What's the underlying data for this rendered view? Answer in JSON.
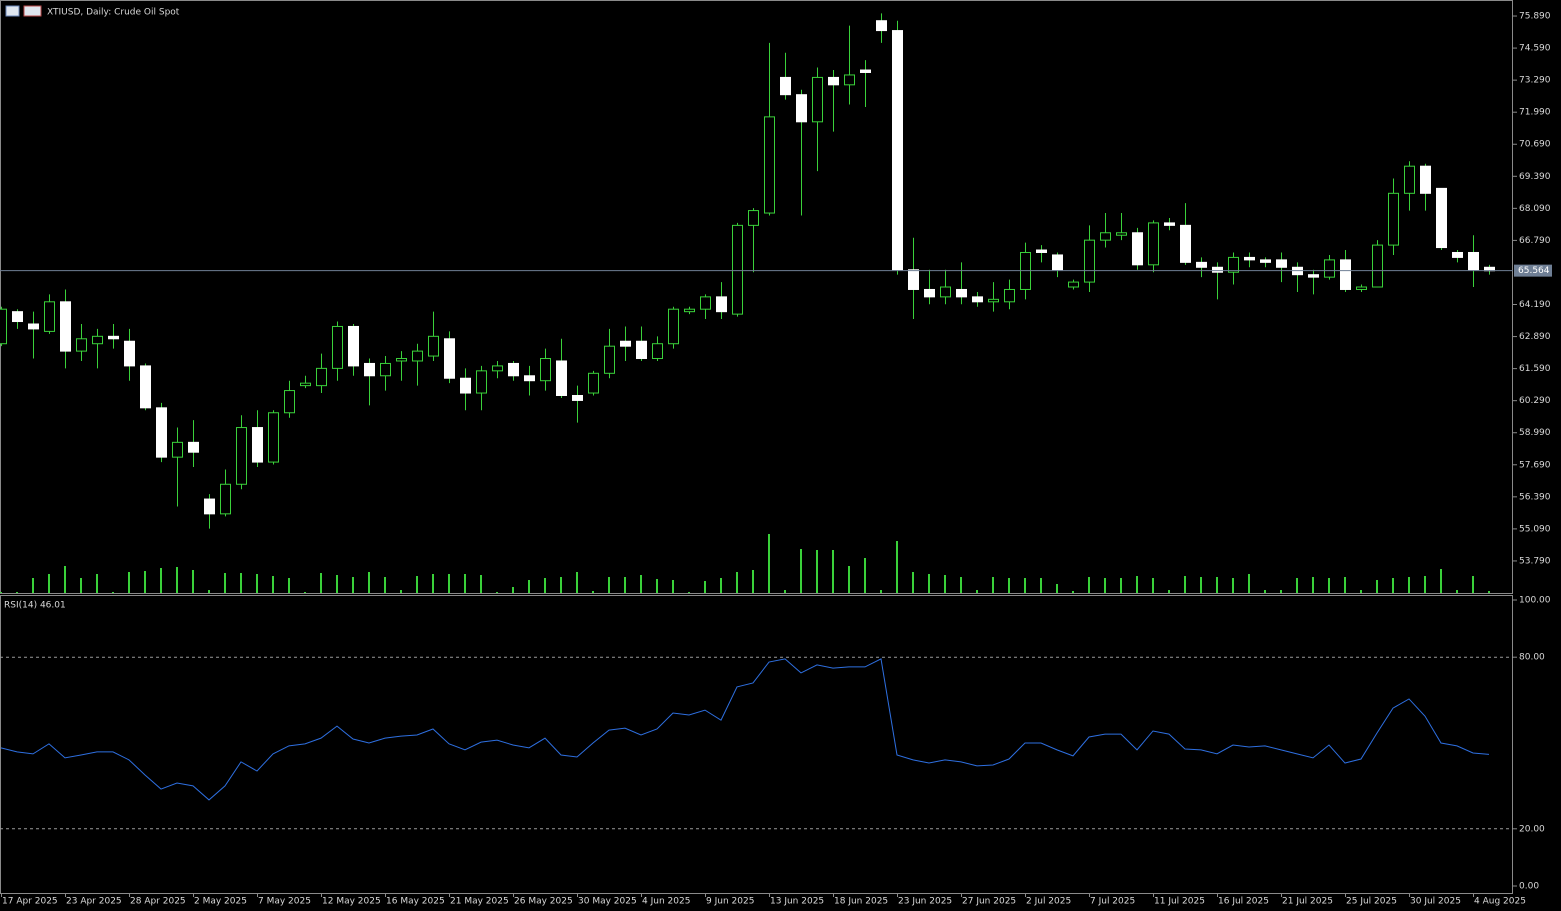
{
  "chart_data": [
    {
      "type": "candlestick",
      "title": "XTIUSD, Daily:  Crude Oil Spot",
      "categories": [
        "17 Apr 2025",
        null,
        null,
        null,
        "23 Apr 2025",
        null,
        null,
        null,
        "28 Apr 2025",
        null,
        null,
        null,
        "2 May 2025",
        null,
        null,
        null,
        "7 May 2025",
        null,
        null,
        null,
        "12 May 2025",
        null,
        null,
        null,
        "16 May 2025",
        null,
        null,
        null,
        "21 May 2025",
        null,
        null,
        null,
        "26 May 2025",
        null,
        null,
        null,
        "30 May 2025",
        null,
        null,
        null,
        "4 Jun 2025",
        null,
        null,
        null,
        "9 Jun 2025",
        null,
        null,
        null,
        "13 Jun 2025",
        null,
        null,
        null,
        "18 Jun 2025",
        null,
        null,
        null,
        "23 Jun 2025",
        null,
        null,
        null,
        "27 Jun 2025",
        null,
        null,
        null,
        "2 Jul 2025",
        null,
        null,
        null,
        "7 Jul 2025",
        null,
        null,
        null,
        "11 Jul 2025",
        null,
        null,
        null,
        "16 Jul 2025",
        null,
        null,
        null,
        "21 Jul 2025",
        null,
        null,
        null,
        "25 Jul 2025",
        null,
        null,
        null,
        "30 Jul 2025",
        null,
        null,
        null,
        "4 Aug 2025",
        null
      ],
      "open": [
        62.6,
        63.9,
        63.4,
        63.1,
        64.3,
        62.3,
        62.6,
        62.9,
        62.7,
        61.7,
        60.0,
        58.0,
        58.6,
        56.3,
        55.7,
        56.9,
        59.2,
        57.8,
        59.8,
        60.9,
        60.9,
        61.6,
        63.3,
        61.8,
        61.3,
        61.9,
        61.9,
        62.1,
        62.8,
        61.2,
        60.6,
        61.5,
        61.8,
        61.3,
        61.1,
        61.9,
        60.5,
        60.6,
        61.4,
        62.7,
        62.7,
        62.0,
        62.6,
        63.9,
        64.0,
        64.5,
        63.8,
        67.4,
        67.9,
        73.4,
        72.7,
        71.6,
        73.4,
        73.1,
        73.7,
        75.7,
        75.3,
        65.6,
        64.8,
        64.5,
        64.8,
        64.5,
        64.3,
        64.3,
        64.8,
        66.4,
        66.2,
        64.9,
        65.1,
        66.8,
        67.0,
        67.1,
        65.8,
        67.5,
        67.4,
        65.9,
        65.7,
        65.5,
        66.1,
        66.0,
        66.0,
        65.7,
        65.4,
        65.3,
        66.0,
        64.8,
        64.9,
        66.6,
        68.7,
        69.8,
        68.9,
        66.3,
        66.3,
        65.7
      ],
      "high": [
        64.1,
        64.0,
        63.9,
        64.6,
        64.8,
        63.4,
        63.2,
        63.4,
        63.2,
        61.8,
        60.2,
        59.2,
        59.5,
        56.5,
        57.5,
        59.7,
        59.9,
        59.9,
        61.1,
        61.3,
        62.2,
        63.5,
        63.4,
        62.0,
        62.1,
        62.3,
        62.6,
        63.9,
        63.1,
        61.6,
        61.7,
        61.9,
        61.9,
        61.7,
        62.4,
        62.8,
        60.9,
        61.5,
        63.2,
        63.3,
        63.3,
        62.9,
        64.1,
        64.1,
        64.6,
        65.1,
        67.5,
        68.1,
        74.8,
        74.4,
        72.9,
        73.8,
        73.7,
        75.5,
        74.1,
        76.0,
        75.7,
        66.9,
        65.6,
        65.6,
        65.9,
        64.7,
        65.1,
        65.2,
        66.7,
        66.6,
        66.3,
        65.2,
        67.4,
        67.9,
        67.9,
        67.3,
        67.6,
        67.7,
        68.3,
        66.1,
        65.9,
        66.3,
        66.3,
        66.1,
        66.3,
        65.9,
        65.6,
        66.2,
        66.4,
        65.0,
        66.8,
        69.3,
        70.0,
        69.9,
        68.9,
        66.4,
        67.0,
        65.8
      ],
      "low": [
        62.5,
        63.2,
        62.0,
        63.0,
        61.6,
        61.9,
        61.6,
        62.4,
        61.1,
        59.9,
        57.8,
        56.0,
        57.6,
        55.1,
        55.6,
        56.7,
        57.6,
        57.7,
        59.6,
        60.8,
        60.6,
        61.1,
        61.3,
        60.1,
        60.7,
        61.1,
        60.9,
        61.9,
        61.0,
        59.9,
        59.9,
        61.2,
        61.1,
        60.5,
        60.7,
        60.4,
        59.4,
        60.5,
        61.2,
        61.9,
        61.9,
        61.9,
        62.4,
        63.8,
        63.6,
        63.6,
        63.7,
        65.5,
        67.8,
        72.5,
        67.8,
        69.6,
        71.2,
        72.3,
        72.2,
        74.8,
        65.4,
        63.6,
        64.2,
        64.2,
        64.2,
        64.1,
        63.9,
        64.0,
        64.4,
        65.9,
        65.3,
        64.8,
        64.7,
        66.5,
        66.8,
        65.6,
        65.5,
        67.2,
        65.8,
        65.3,
        64.4,
        65.0,
        65.7,
        65.7,
        65.1,
        64.7,
        64.6,
        65.2,
        64.7,
        64.7,
        64.9,
        66.2,
        68.0,
        68.0,
        66.4,
        65.9,
        64.9,
        65.4
      ],
      "close": [
        64.0,
        63.5,
        63.2,
        64.3,
        62.3,
        62.8,
        62.9,
        62.8,
        61.7,
        60.0,
        58.0,
        58.6,
        58.2,
        55.7,
        56.9,
        59.2,
        57.8,
        59.8,
        60.7,
        61.0,
        61.6,
        63.3,
        61.7,
        61.3,
        61.8,
        62.0,
        62.3,
        62.9,
        61.2,
        60.6,
        61.5,
        61.7,
        61.3,
        61.1,
        62.0,
        60.5,
        60.3,
        61.4,
        62.5,
        62.5,
        62.0,
        62.6,
        64.0,
        64.0,
        64.5,
        63.9,
        67.4,
        68.0,
        71.8,
        72.7,
        71.6,
        73.4,
        73.1,
        73.5,
        73.6,
        75.3,
        65.6,
        64.8,
        64.5,
        64.9,
        64.5,
        64.3,
        64.4,
        64.8,
        66.3,
        66.3,
        65.6,
        65.1,
        66.8,
        67.1,
        67.1,
        65.8,
        67.5,
        67.4,
        65.9,
        65.7,
        65.5,
        66.1,
        66.0,
        65.9,
        65.7,
        65.4,
        65.3,
        66.0,
        64.8,
        64.9,
        66.6,
        68.7,
        69.8,
        68.7,
        66.5,
        66.1,
        65.6,
        65.56
      ],
      "volume": [
        1,
        1,
        15,
        19,
        27,
        15,
        19,
        1,
        21,
        22,
        25,
        26,
        23,
        3,
        20,
        20,
        19,
        17,
        15,
        1,
        20,
        18,
        16,
        21,
        16,
        3,
        17,
        19,
        19,
        19,
        18,
        1,
        6,
        13,
        15,
        16,
        21,
        2,
        16,
        16,
        18,
        14,
        13,
        1,
        12,
        15,
        21,
        23,
        59,
        3,
        44,
        43,
        43,
        27,
        35,
        3,
        52,
        21,
        19,
        18,
        16,
        3,
        16,
        15,
        15,
        15,
        9,
        2,
        16,
        15,
        15,
        17,
        15,
        3,
        17,
        16,
        16,
        15,
        19,
        3,
        3,
        15,
        16,
        15,
        16,
        3,
        13,
        15,
        16,
        17,
        24,
        3,
        17,
        2
      ],
      "ylim": [
        52.49,
        76.54
      ],
      "yticks": [
        {
          "value": 75.89,
          "label": "75.890"
        },
        {
          "value": 74.59,
          "label": "74.590"
        },
        {
          "value": 73.29,
          "label": "73.290"
        },
        {
          "value": 71.99,
          "label": "71.990"
        },
        {
          "value": 70.69,
          "label": "70.690"
        },
        {
          "value": 69.39,
          "label": "69.390"
        },
        {
          "value": 68.09,
          "label": "68.090"
        },
        {
          "value": 66.79,
          "label": "66.790"
        },
        {
          "value": 64.19,
          "label": "64.190"
        },
        {
          "value": 62.89,
          "label": "62.890"
        },
        {
          "value": 61.59,
          "label": "61.590"
        },
        {
          "value": 60.29,
          "label": "60.290"
        },
        {
          "value": 58.99,
          "label": "58.990"
        },
        {
          "value": 57.69,
          "label": "57.690"
        },
        {
          "value": 56.39,
          "label": "56.390"
        },
        {
          "value": 55.09,
          "label": "55.090"
        },
        {
          "value": 53.79,
          "label": "53.790"
        }
      ],
      "last_price": 65.564,
      "grid": false,
      "up_color": "#3ad13a",
      "down_color": "#ffffff",
      "volume_color": "#3ad13a",
      "last_price_color": "#6f7f95"
    },
    {
      "type": "line",
      "title": "RSI(14) 46.01",
      "values": [
        48.3,
        46.9,
        46.2,
        49.7,
        44.8,
        45.8,
        46.9,
        46.9,
        44.1,
        38.8,
        33.9,
        36.0,
        35.0,
        30.1,
        35.0,
        43.4,
        40.2,
        46.2,
        49.0,
        49.7,
        51.7,
        55.9,
        51.4,
        50.0,
        51.7,
        52.4,
        52.8,
        54.9,
        49.7,
        47.6,
        50.3,
        51.0,
        49.3,
        48.3,
        51.7,
        45.8,
        45.1,
        50.0,
        54.5,
        55.2,
        52.8,
        54.9,
        60.5,
        59.8,
        61.5,
        58.0,
        69.6,
        71.0,
        78.3,
        79.4,
        74.5,
        77.3,
        76.2,
        76.6,
        76.6,
        79.4,
        45.8,
        44.1,
        43.0,
        44.1,
        43.4,
        42.0,
        42.3,
        44.4,
        50.0,
        50.0,
        47.6,
        45.5,
        52.1,
        53.1,
        53.1,
        47.6,
        54.2,
        53.1,
        47.9,
        47.6,
        46.2,
        49.3,
        48.6,
        49.0,
        47.6,
        46.2,
        44.8,
        49.3,
        43.0,
        44.4,
        53.5,
        62.2,
        65.4,
        59.4,
        50.0,
        49.0,
        46.5,
        46.01
      ],
      "ylim": [
        0,
        100
      ],
      "yticks": [
        {
          "value": 0,
          "label": "0.00"
        },
        {
          "value": 20,
          "label": "20.00"
        },
        {
          "value": 80,
          "label": "80.00"
        },
        {
          "value": 100,
          "label": "100.00"
        }
      ],
      "color": "#2e6fe0"
    }
  ]
}
